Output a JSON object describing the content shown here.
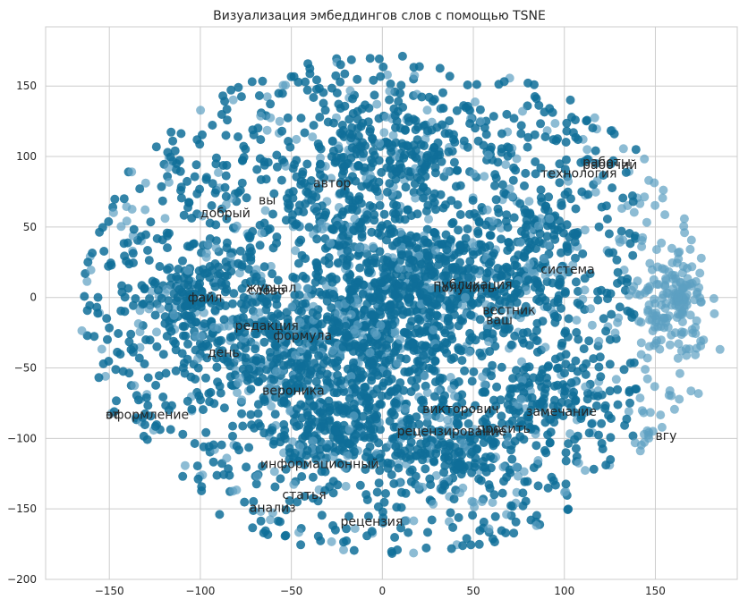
{
  "chart_data": {
    "type": "scatter",
    "title": "Визуализация эмбеддингов слов с помощью TSNE",
    "xlabel": "",
    "ylabel": "",
    "xlim": [
      -185,
      195
    ],
    "ylim": [
      -200,
      192
    ],
    "x_ticks": [
      -150,
      -100,
      -50,
      0,
      50,
      100,
      150
    ],
    "y_ticks": [
      -200,
      -150,
      -100,
      -50,
      0,
      50,
      100,
      150
    ],
    "grid": true,
    "legend": "none",
    "colors": {
      "point": "#0f6e99",
      "point_light": "#5c9fc2",
      "grid": "#cccccc",
      "text": "#262626"
    },
    "point_count": "approx. 4000 (dense cloud)",
    "clusters": [
      {
        "cx": -8,
        "cy": -25,
        "rx": 38,
        "ry": 48,
        "n": 520
      },
      {
        "cx": 30,
        "cy": 10,
        "rx": 45,
        "ry": 32,
        "n": 380
      },
      {
        "cx": -60,
        "cy": -40,
        "rx": 40,
        "ry": 30,
        "n": 260
      },
      {
        "cx": -105,
        "cy": 0,
        "rx": 20,
        "ry": 25,
        "n": 120
      },
      {
        "cx": 15,
        "cy": 110,
        "rx": 30,
        "ry": 22,
        "n": 150
      },
      {
        "cx": -25,
        "cy": -95,
        "rx": 30,
        "ry": 22,
        "n": 180
      },
      {
        "cx": 40,
        "cy": -110,
        "rx": 22,
        "ry": 22,
        "n": 150
      },
      {
        "cx": 85,
        "cy": 40,
        "rx": 25,
        "ry": 35,
        "n": 140
      },
      {
        "cx": 90,
        "cy": -70,
        "rx": 20,
        "ry": 20,
        "n": 100
      },
      {
        "cx": 160,
        "cy": -10,
        "rx": 14,
        "ry": 30,
        "n": 70
      },
      {
        "cx": -20,
        "cy": 70,
        "rx": 40,
        "ry": 30,
        "n": 160
      }
    ],
    "annotations": [
      {
        "text": "автор",
        "x": -38,
        "y": 78
      },
      {
        "text": "вы",
        "x": -68,
        "y": 66
      },
      {
        "text": "добрый",
        "x": -100,
        "y": 57
      },
      {
        "text": "рабочий",
        "x": 110,
        "y": 91
      },
      {
        "text": "работы",
        "x": 110,
        "y": 93
      },
      {
        "text": "технология",
        "x": 87,
        "y": 85
      },
      {
        "text": "система",
        "x": 87,
        "y": 17
      },
      {
        "text": "публикация",
        "x": 28,
        "y": 6
      },
      {
        "text": "получить",
        "x": 28,
        "y": 4
      },
      {
        "text": "журнал",
        "x": -75,
        "y": 4
      },
      {
        "text": "слово",
        "x": -74,
        "y": 2
      },
      {
        "text": "файл",
        "x": -107,
        "y": -3
      },
      {
        "text": "вестник",
        "x": 55,
        "y": -12
      },
      {
        "text": "ваш",
        "x": 57,
        "y": -19
      },
      {
        "text": "редакция",
        "x": -81,
        "y": -23
      },
      {
        "text": "формула",
        "x": -60,
        "y": -30
      },
      {
        "text": "день",
        "x": -96,
        "y": -42
      },
      {
        "text": "вероника",
        "x": -66,
        "y": -69
      },
      {
        "text": "викторович",
        "x": 22,
        "y": -82
      },
      {
        "text": "замечание",
        "x": 79,
        "y": -84
      },
      {
        "text": "оформление",
        "x": -152,
        "y": -86
      },
      {
        "text": "эт",
        "x": -152,
        "y": -86
      },
      {
        "text": "просить",
        "x": 52,
        "y": -96
      },
      {
        "text": "рецензирование",
        "x": 8,
        "y": -98
      },
      {
        "text": "рец",
        "x": 8,
        "y": -98
      },
      {
        "text": "вгу",
        "x": 150,
        "y": -101
      },
      {
        "text": "информационный",
        "x": -67,
        "y": -121
      },
      {
        "text": "статья",
        "x": -55,
        "y": -143
      },
      {
        "text": "анализ",
        "x": -73,
        "y": -152
      },
      {
        "text": "рецензия",
        "x": -23,
        "y": -162
      }
    ]
  }
}
